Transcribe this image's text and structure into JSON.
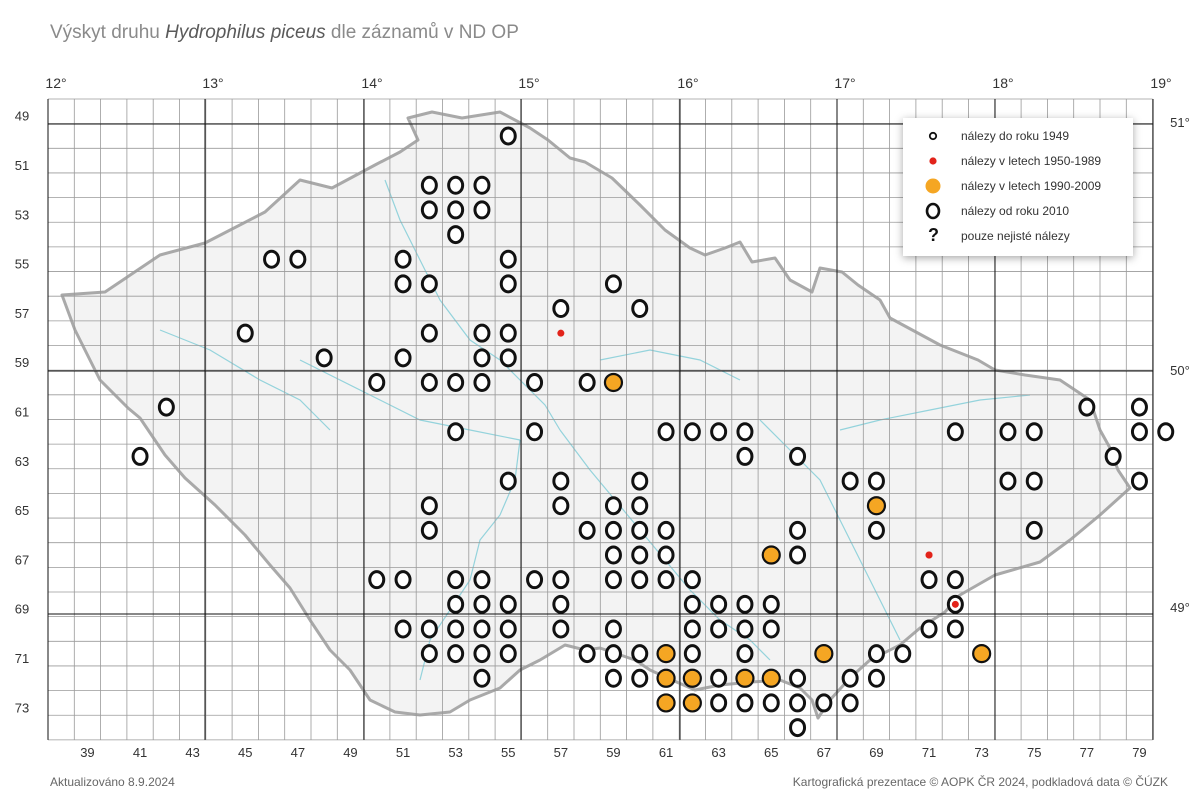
{
  "title": {
    "prefix": "Výskyt druhu",
    "species": "Hydrophilus piceus",
    "suffix": "dle záznamů v ND OP"
  },
  "footer": {
    "updated": "Aktualizováno 8.9.2024",
    "credits": "Kartografická prezentace © AOPK ČR 2024, podkladová data © ČÚZK"
  },
  "legend": {
    "items": [
      {
        "key": "pre1949",
        "label": "nálezy do roku 1949",
        "icon": "small-ring-icon"
      },
      {
        "key": "y1950",
        "label": "nálezy v letech 1950-1989",
        "icon": "red-dot-icon"
      },
      {
        "key": "y1990",
        "label": "nálezy v letech 1990-2009",
        "icon": "orange-dot-icon"
      },
      {
        "key": "y2010",
        "label": "nálezy od roku 2010",
        "icon": "bold-ring-icon"
      },
      {
        "key": "uncertain",
        "label": "pouze nejisté nálezy",
        "icon": "question-mark-icon"
      }
    ]
  },
  "colors": {
    "ring": "#111111",
    "red": "#e2231a",
    "orange": "#f5a623",
    "grid": "#9a9a9a",
    "gridMajor": "#111111",
    "border": "#a9a9a9",
    "river": "#7ccbd6"
  },
  "axes": {
    "longitude_labels": [
      "12°",
      "13°",
      "14°",
      "15°",
      "16°",
      "17°",
      "18°",
      "19°"
    ],
    "latitude_labels": [
      "51°",
      "50°",
      "49°"
    ],
    "column_labels": [
      "39",
      "41",
      "43",
      "45",
      "47",
      "49",
      "51",
      "53",
      "55",
      "57",
      "59",
      "61",
      "63",
      "65",
      "67",
      "69",
      "71",
      "73",
      "75",
      "77",
      "79"
    ],
    "row_labels": [
      "49",
      "51",
      "53",
      "55",
      "57",
      "59",
      "61",
      "63",
      "65",
      "67",
      "69",
      "71",
      "73"
    ]
  },
  "records": {
    "bold_ring": [
      [
        55,
        49
      ],
      [
        52,
        51
      ],
      [
        53,
        51
      ],
      [
        54,
        51
      ],
      [
        52,
        52
      ],
      [
        53,
        52
      ],
      [
        54,
        52
      ],
      [
        53,
        53
      ],
      [
        46,
        54
      ],
      [
        47,
        54
      ],
      [
        51,
        54
      ],
      [
        55,
        54
      ],
      [
        51,
        55
      ],
      [
        52,
        55
      ],
      [
        55,
        55
      ],
      [
        59,
        55
      ],
      [
        57,
        56
      ],
      [
        60,
        56
      ],
      [
        45,
        57
      ],
      [
        52,
        57
      ],
      [
        54,
        57
      ],
      [
        55,
        57
      ],
      [
        48,
        58
      ],
      [
        51,
        58
      ],
      [
        54,
        58
      ],
      [
        55,
        58
      ],
      [
        50,
        59
      ],
      [
        52,
        59
      ],
      [
        53,
        59
      ],
      [
        54,
        59
      ],
      [
        56,
        59
      ],
      [
        58,
        59
      ],
      [
        42,
        60
      ],
      [
        77,
        60
      ],
      [
        79,
        60
      ],
      [
        53,
        61
      ],
      [
        56,
        61
      ],
      [
        61,
        61
      ],
      [
        62,
        61
      ],
      [
        63,
        61
      ],
      [
        64,
        61
      ],
      [
        72,
        61
      ],
      [
        74,
        61
      ],
      [
        75,
        61
      ],
      [
        79,
        61
      ],
      [
        80,
        61
      ],
      [
        41,
        62
      ],
      [
        64,
        62
      ],
      [
        66,
        62
      ],
      [
        78,
        62
      ],
      [
        55,
        63
      ],
      [
        57,
        63
      ],
      [
        60,
        63
      ],
      [
        68,
        63
      ],
      [
        69,
        63
      ],
      [
        74,
        63
      ],
      [
        75,
        63
      ],
      [
        79,
        63
      ],
      [
        52,
        64
      ],
      [
        57,
        64
      ],
      [
        59,
        64
      ],
      [
        60,
        64
      ],
      [
        52,
        65
      ],
      [
        58,
        65
      ],
      [
        59,
        65
      ],
      [
        60,
        65
      ],
      [
        61,
        65
      ],
      [
        66,
        65
      ],
      [
        69,
        65
      ],
      [
        75,
        65
      ],
      [
        59,
        66
      ],
      [
        60,
        66
      ],
      [
        61,
        66
      ],
      [
        66,
        66
      ],
      [
        50,
        67
      ],
      [
        51,
        67
      ],
      [
        53,
        67
      ],
      [
        54,
        67
      ],
      [
        56,
        67
      ],
      [
        57,
        67
      ],
      [
        59,
        67
      ],
      [
        60,
        67
      ],
      [
        61,
        67
      ],
      [
        62,
        67
      ],
      [
        71,
        67
      ],
      [
        72,
        67
      ],
      [
        53,
        68
      ],
      [
        54,
        68
      ],
      [
        55,
        68
      ],
      [
        57,
        68
      ],
      [
        62,
        68
      ],
      [
        63,
        68
      ],
      [
        64,
        68
      ],
      [
        65,
        68
      ],
      [
        72,
        68
      ],
      [
        51,
        69
      ],
      [
        52,
        69
      ],
      [
        53,
        69
      ],
      [
        54,
        69
      ],
      [
        55,
        69
      ],
      [
        57,
        69
      ],
      [
        59,
        69
      ],
      [
        62,
        69
      ],
      [
        63,
        69
      ],
      [
        64,
        69
      ],
      [
        65,
        69
      ],
      [
        71,
        69
      ],
      [
        72,
        69
      ],
      [
        52,
        70
      ],
      [
        53,
        70
      ],
      [
        54,
        70
      ],
      [
        55,
        70
      ],
      [
        58,
        70
      ],
      [
        59,
        70
      ],
      [
        60,
        70
      ],
      [
        62,
        70
      ],
      [
        64,
        70
      ],
      [
        69,
        70
      ],
      [
        70,
        70
      ],
      [
        54,
        71
      ],
      [
        59,
        71
      ],
      [
        60,
        71
      ],
      [
        63,
        71
      ],
      [
        66,
        71
      ],
      [
        68,
        71
      ],
      [
        69,
        71
      ],
      [
        63,
        72
      ],
      [
        64,
        72
      ],
      [
        65,
        72
      ],
      [
        66,
        72
      ],
      [
        67,
        72
      ],
      [
        68,
        72
      ],
      [
        66,
        73
      ]
    ],
    "orange": [
      [
        59,
        59
      ],
      [
        69,
        64
      ],
      [
        65,
        66
      ],
      [
        61,
        70
      ],
      [
        67,
        70
      ],
      [
        73,
        70
      ],
      [
        61,
        71
      ],
      [
        62,
        71
      ],
      [
        64,
        71
      ],
      [
        65,
        71
      ],
      [
        61,
        72
      ],
      [
        62,
        72
      ]
    ],
    "red": [
      [
        57,
        57
      ],
      [
        71,
        66
      ],
      [
        72,
        68
      ]
    ],
    "orange_dot": [
      [
        69,
        64
      ],
      [
        59,
        59
      ]
    ],
    "red_dot": [
      [
        71,
        66
      ]
    ]
  }
}
